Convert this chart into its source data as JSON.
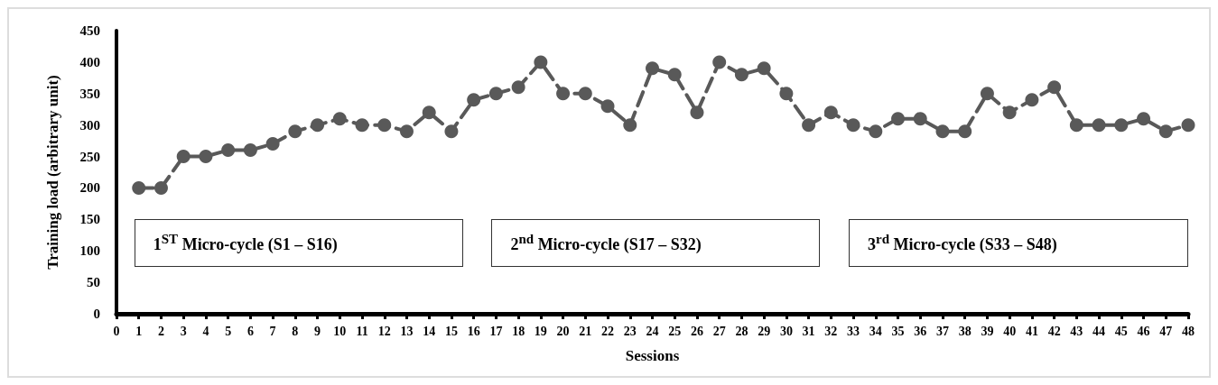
{
  "chart_data": {
    "type": "line",
    "xlabel": "Sessions",
    "ylabel": "Training load (arbitrary unit)",
    "x": [
      1,
      2,
      3,
      4,
      5,
      6,
      7,
      8,
      9,
      10,
      11,
      12,
      13,
      14,
      15,
      16,
      17,
      18,
      19,
      20,
      21,
      22,
      23,
      24,
      25,
      26,
      27,
      28,
      29,
      30,
      31,
      32,
      33,
      34,
      35,
      36,
      37,
      38,
      39,
      40,
      41,
      42,
      43,
      44,
      45,
      46,
      47,
      48
    ],
    "series": [
      {
        "color": "#595959",
        "values": [
          200,
          200,
          250,
          250,
          260,
          260,
          270,
          290,
          300,
          310,
          300,
          300,
          290,
          320,
          290,
          340,
          350,
          360,
          400,
          350,
          350,
          330,
          300,
          390,
          380,
          320,
          400,
          380,
          390,
          350,
          300,
          320,
          300,
          290,
          310,
          310,
          290,
          290,
          350,
          320,
          340,
          360,
          300,
          300,
          300,
          310,
          290,
          300
        ]
      }
    ],
    "xlim": [
      0,
      48
    ],
    "xticks": [
      0,
      1,
      2,
      3,
      4,
      5,
      6,
      7,
      8,
      9,
      10,
      11,
      12,
      13,
      14,
      15,
      16,
      17,
      18,
      19,
      20,
      21,
      22,
      23,
      24,
      25,
      26,
      27,
      28,
      29,
      30,
      31,
      32,
      33,
      34,
      35,
      36,
      37,
      38,
      39,
      40,
      41,
      42,
      43,
      44,
      45,
      46,
      47,
      48
    ],
    "ylim": [
      0,
      450
    ],
    "yticks": [
      0,
      50,
      100,
      150,
      200,
      250,
      300,
      350,
      400,
      450
    ],
    "grid": false,
    "marker": "circle",
    "line_style": "dashed",
    "annotations": [
      "1$^{ST}$ Micro-cycle (S1 – S16)",
      "2$^{nd}$ Micro-cycle (S17 – S32)",
      "3$^{rd}$ Micro-cycle (S33 – S48)"
    ]
  }
}
